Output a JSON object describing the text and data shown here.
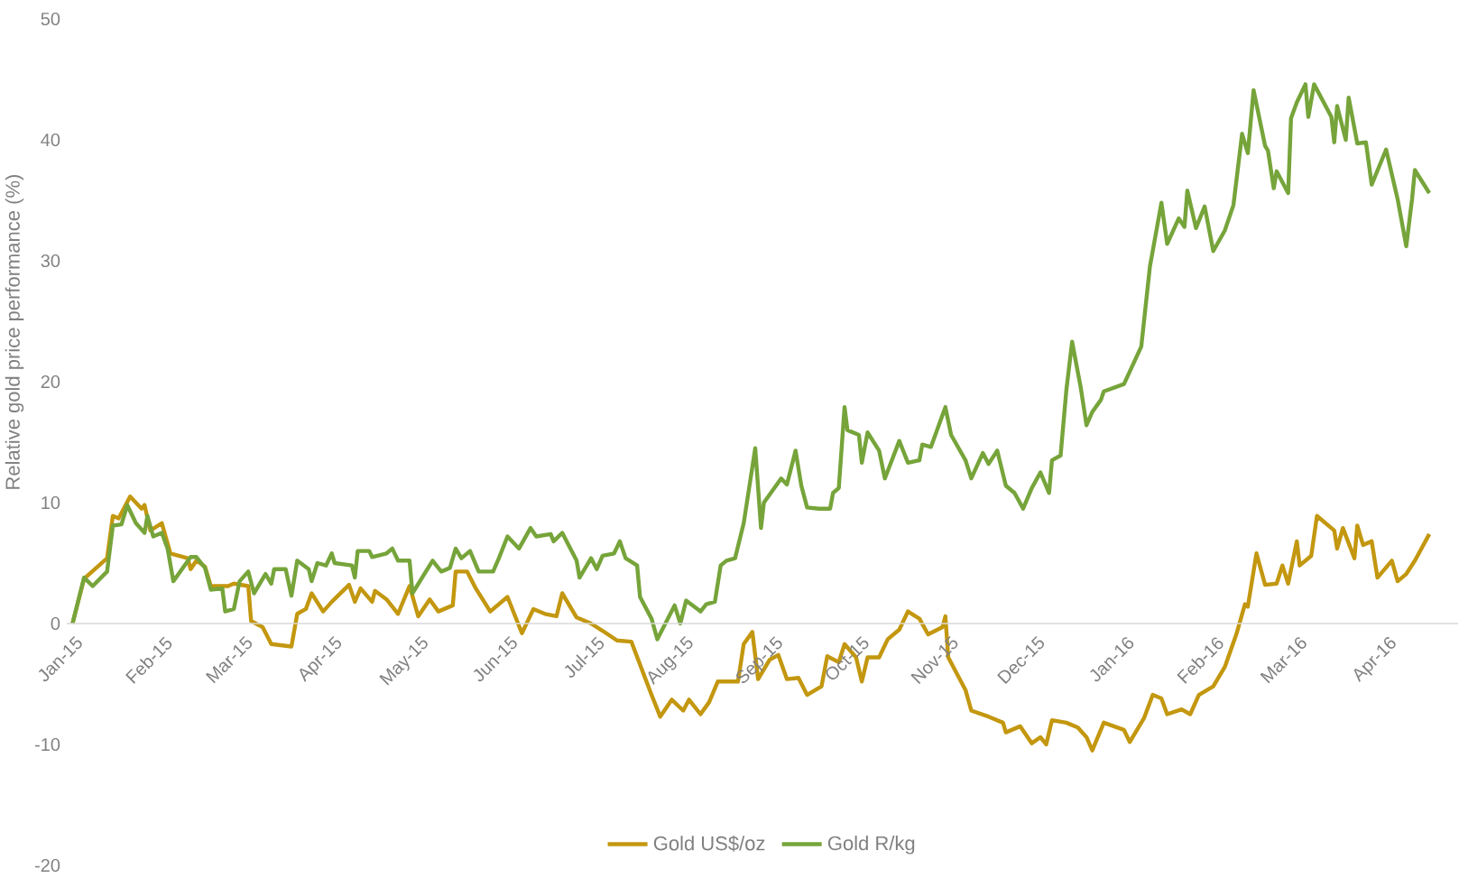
{
  "chart_data": {
    "type": "line",
    "ylabel": "Relative gold price performance (%)",
    "xlim": [
      "2014-12-30",
      "2016-04-26"
    ],
    "ylim": [
      -20,
      50
    ],
    "yticks": [
      -20,
      -10,
      0,
      10,
      20,
      30,
      40,
      50
    ],
    "xticks": [
      {
        "value": "2015-01-01",
        "label": "Jan-15"
      },
      {
        "value": "2015-02-01",
        "label": "Feb-15"
      },
      {
        "value": "2015-03-01",
        "label": "Mar-15"
      },
      {
        "value": "2015-04-01",
        "label": "Apr-15"
      },
      {
        "value": "2015-05-01",
        "label": "May-15"
      },
      {
        "value": "2015-06-01",
        "label": "Jun-15"
      },
      {
        "value": "2015-07-01",
        "label": "Jul-15"
      },
      {
        "value": "2015-08-01",
        "label": "Aug-15"
      },
      {
        "value": "2015-09-01",
        "label": "Sep-15"
      },
      {
        "value": "2015-10-01",
        "label": "Oct-15"
      },
      {
        "value": "2015-11-01",
        "label": "Nov-15"
      },
      {
        "value": "2015-12-01",
        "label": "Dec-15"
      },
      {
        "value": "2016-01-01",
        "label": "Jan-16"
      },
      {
        "value": "2016-02-01",
        "label": "Feb-16"
      },
      {
        "value": "2016-03-01",
        "label": "Mar-16"
      },
      {
        "value": "2016-04-01",
        "label": "Apr-16"
      }
    ],
    "legend": "bottom",
    "series": [
      {
        "name": "Gold US$/oz",
        "color": "#c3970f",
        "x": [
          "2015-01-01",
          "2015-01-05",
          "2015-01-13",
          "2015-01-15",
          "2015-01-17",
          "2015-01-21",
          "2015-01-25",
          "2015-01-26",
          "2015-01-28",
          "2015-02-01",
          "2015-02-04",
          "2015-02-10",
          "2015-02-11",
          "2015-02-13",
          "2015-02-16",
          "2015-02-18",
          "2015-02-24",
          "2015-02-26",
          "2015-03-03",
          "2015-03-04",
          "2015-03-08",
          "2015-03-11",
          "2015-03-18",
          "2015-03-20",
          "2015-03-23",
          "2015-03-25",
          "2015-03-29",
          "2015-04-01",
          "2015-04-07",
          "2015-04-09",
          "2015-04-11",
          "2015-04-15",
          "2015-04-16",
          "2015-04-20",
          "2015-04-24",
          "2015-04-28",
          "2015-05-01",
          "2015-05-05",
          "2015-05-08",
          "2015-05-13",
          "2015-05-14",
          "2015-05-18",
          "2015-05-21",
          "2015-05-26",
          "2015-06-01",
          "2015-06-06",
          "2015-06-10",
          "2015-06-14",
          "2015-06-18",
          "2015-06-20",
          "2015-06-25",
          "2015-06-30",
          "2015-07-04",
          "2015-07-09",
          "2015-07-14",
          "2015-07-17",
          "2015-07-21",
          "2015-07-24",
          "2015-07-28",
          "2015-08-01",
          "2015-08-03",
          "2015-08-07",
          "2015-08-10",
          "2015-08-13",
          "2015-08-20",
          "2015-08-22",
          "2015-08-25",
          "2015-08-27",
          "2015-08-31",
          "2015-09-03",
          "2015-09-06",
          "2015-09-10",
          "2015-09-13",
          "2015-09-18",
          "2015-09-20",
          "2015-09-24",
          "2015-09-26",
          "2015-09-30",
          "2015-10-02",
          "2015-10-04",
          "2015-10-08",
          "2015-10-11",
          "2015-10-15",
          "2015-10-18",
          "2015-10-22",
          "2015-10-25",
          "2015-10-30",
          "2015-10-31",
          "2015-11-01",
          "2015-11-07",
          "2015-11-09",
          "2015-11-15",
          "2015-11-20",
          "2015-11-21",
          "2015-11-26",
          "2015-11-30",
          "2015-12-03",
          "2015-12-05",
          "2015-12-07",
          "2015-12-12",
          "2015-12-16",
          "2015-12-19",
          "2015-12-21",
          "2015-12-25",
          "2016-01-01",
          "2016-01-03",
          "2016-01-08",
          "2016-01-11",
          "2016-01-14",
          "2016-01-16",
          "2016-01-21",
          "2016-01-24",
          "2016-01-27",
          "2016-02-01",
          "2016-02-05",
          "2016-02-09",
          "2016-02-12",
          "2016-02-13",
          "2016-02-16",
          "2016-02-19",
          "2016-02-23",
          "2016-02-25",
          "2016-02-27",
          "2016-03-01",
          "2016-03-02",
          "2016-03-06",
          "2016-03-08",
          "2016-03-14",
          "2016-03-15",
          "2016-03-17",
          "2016-03-21",
          "2016-03-22",
          "2016-03-24",
          "2016-03-27",
          "2016-03-29",
          "2016-04-03",
          "2016-04-05",
          "2016-04-08",
          "2016-04-11",
          "2016-04-16"
        ],
        "values": [
          0,
          3.7,
          5.4,
          8.9,
          8.7,
          10.5,
          9.5,
          9.8,
          7.7,
          8.3,
          5.8,
          5.4,
          4.5,
          5.2,
          4.7,
          3.1,
          3.1,
          3.3,
          3.1,
          0.2,
          -0.3,
          -1.7,
          -1.9,
          0.8,
          1.2,
          2.5,
          1.0,
          1.8,
          3.2,
          1.8,
          2.9,
          1.8,
          2.7,
          2.0,
          0.8,
          3.1,
          0.6,
          2.0,
          1.0,
          1.5,
          4.3,
          4.3,
          2.9,
          1.0,
          2.2,
          -0.8,
          1.2,
          0.8,
          0.6,
          2.5,
          0.5,
          0,
          -0.6,
          -1.4,
          -1.5,
          -3.4,
          -5.9,
          -7.7,
          -6.3,
          -7.2,
          -6.3,
          -7.5,
          -6.5,
          -4.8,
          -4.8,
          -1.7,
          -0.7,
          -4.6,
          -3.0,
          -2.6,
          -4.6,
          -4.5,
          -5.9,
          -5.2,
          -2.7,
          -3.2,
          -1.7,
          -2.8,
          -4.8,
          -2.8,
          -2.8,
          -1.3,
          -0.5,
          1.0,
          0.4,
          -0.9,
          -0.3,
          0.6,
          -2.8,
          -5.5,
          -7.2,
          -7.7,
          -8.2,
          -9.0,
          -8.5,
          -9.9,
          -9.4,
          -10.0,
          -8.0,
          -8.2,
          -8.6,
          -9.4,
          -10.5,
          -8.2,
          -8.8,
          -9.8,
          -7.8,
          -5.9,
          -6.2,
          -7.5,
          -7.1,
          -7.5,
          -5.9,
          -5.2,
          -3.6,
          -0.9,
          1.6,
          1.4,
          5.8,
          3.2,
          3.3,
          4.8,
          3.3,
          6.8,
          4.8,
          5.6,
          8.9,
          7.7,
          6.2,
          7.9,
          5.4,
          8.1,
          6.5,
          6.8,
          3.8,
          5.2,
          3.5,
          4.1,
          5.2,
          7.4
        ]
      },
      {
        "name": "Gold R/kg",
        "color": "#76a43a",
        "x": [
          "2015-01-01",
          "2015-01-05",
          "2015-01-08",
          "2015-01-13",
          "2015-01-15",
          "2015-01-18",
          "2015-01-20",
          "2015-01-23",
          "2015-01-26",
          "2015-01-27",
          "2015-01-29",
          "2015-02-01",
          "2015-02-03",
          "2015-02-05",
          "2015-02-11",
          "2015-02-13",
          "2015-02-16",
          "2015-02-18",
          "2015-02-22",
          "2015-02-23",
          "2015-02-26",
          "2015-02-28",
          "2015-03-03",
          "2015-03-05",
          "2015-03-09",
          "2015-03-11",
          "2015-03-12",
          "2015-03-16",
          "2015-03-18",
          "2015-03-20",
          "2015-03-24",
          "2015-03-25",
          "2015-03-27",
          "2015-03-30",
          "2015-04-01",
          "2015-04-02",
          "2015-04-08",
          "2015-04-09",
          "2015-04-10",
          "2015-04-14",
          "2015-04-15",
          "2015-04-20",
          "2015-04-22",
          "2015-04-24",
          "2015-04-28",
          "2015-04-29",
          "2015-05-06",
          "2015-05-09",
          "2015-05-12",
          "2015-05-14",
          "2015-05-16",
          "2015-05-19",
          "2015-05-22",
          "2015-05-27",
          "2015-05-29",
          "2015-06-01",
          "2015-06-05",
          "2015-06-09",
          "2015-06-11",
          "2015-06-16",
          "2015-06-17",
          "2015-06-20",
          "2015-06-25",
          "2015-06-26",
          "2015-06-30",
          "2015-07-02",
          "2015-07-04",
          "2015-07-08",
          "2015-07-10",
          "2015-07-12",
          "2015-07-16",
          "2015-07-17",
          "2015-07-21",
          "2015-07-23",
          "2015-07-29",
          "2015-07-31",
          "2015-08-02",
          "2015-08-07",
          "2015-08-09",
          "2015-08-12",
          "2015-08-14",
          "2015-08-16",
          "2015-08-19",
          "2015-08-22",
          "2015-08-26",
          "2015-08-28",
          "2015-08-29",
          "2015-09-04",
          "2015-09-06",
          "2015-09-09",
          "2015-09-11",
          "2015-09-13",
          "2015-09-17",
          "2015-09-21",
          "2015-09-22",
          "2015-09-24",
          "2015-09-26",
          "2015-09-27",
          "2015-10-01",
          "2015-10-02",
          "2015-10-04",
          "2015-10-08",
          "2015-10-10",
          "2015-10-15",
          "2015-10-18",
          "2015-10-22",
          "2015-10-23",
          "2015-10-26",
          "2015-10-31",
          "2015-11-02",
          "2015-11-07",
          "2015-11-09",
          "2015-11-13",
          "2015-11-15",
          "2015-11-18",
          "2015-11-21",
          "2015-11-24",
          "2015-11-27",
          "2015-11-30",
          "2015-12-03",
          "2015-12-06",
          "2015-12-07",
          "2015-12-10",
          "2015-12-12",
          "2015-12-14",
          "2015-12-17",
          "2015-12-19",
          "2015-12-21",
          "2015-12-24",
          "2015-12-25",
          "2016-01-01",
          "2016-01-07",
          "2016-01-10",
          "2016-01-14",
          "2016-01-16",
          "2016-01-20",
          "2016-01-22",
          "2016-01-23",
          "2016-01-26",
          "2016-01-29",
          "2016-02-01",
          "2016-02-05",
          "2016-02-08",
          "2016-02-11",
          "2016-02-13",
          "2016-02-15",
          "2016-02-19",
          "2016-02-20",
          "2016-02-22",
          "2016-02-23",
          "2016-02-27",
          "2016-02-28",
          "2016-03-01",
          "2016-03-04",
          "2016-03-05",
          "2016-03-07",
          "2016-03-13",
          "2016-03-14",
          "2016-03-15",
          "2016-03-18",
          "2016-03-19",
          "2016-03-22",
          "2016-03-25",
          "2016-03-27",
          "2016-04-01",
          "2016-04-05",
          "2016-04-08",
          "2016-04-10",
          "2016-04-11",
          "2016-04-16"
        ],
        "values": [
          0,
          3.8,
          3.1,
          4.3,
          8.1,
          8.2,
          9.8,
          8.3,
          7.5,
          8.9,
          7.2,
          7.5,
          6.2,
          3.5,
          5.5,
          5.5,
          4.6,
          2.8,
          2.9,
          1.0,
          1.2,
          3.5,
          4.3,
          2.5,
          4.1,
          3.3,
          4.5,
          4.5,
          2.3,
          5.2,
          4.5,
          3.5,
          5.0,
          4.8,
          5.8,
          5.0,
          4.8,
          3.8,
          6.0,
          6.0,
          5.5,
          5.8,
          6.2,
          5.2,
          5.2,
          2.5,
          5.2,
          4.3,
          4.6,
          6.2,
          5.4,
          6.0,
          4.3,
          4.3,
          5.4,
          7.2,
          6.2,
          7.9,
          7.2,
          7.4,
          6.8,
          7.5,
          5.2,
          3.8,
          5.4,
          4.5,
          5.6,
          5.8,
          6.8,
          5.4,
          4.8,
          2.2,
          0.4,
          -1.3,
          1.5,
          0,
          1.9,
          1.0,
          1.6,
          1.8,
          4.8,
          5.2,
          5.4,
          8.3,
          14.5,
          7.9,
          10.0,
          12.0,
          11.5,
          14.3,
          11.4,
          9.6,
          9.5,
          9.5,
          10.8,
          11.2,
          17.9,
          16.0,
          15.6,
          13.3,
          15.8,
          14.3,
          12.0,
          15.1,
          13.3,
          13.5,
          14.8,
          14.6,
          17.9,
          15.6,
          13.5,
          12.0,
          14.1,
          13.2,
          14.3,
          11.4,
          10.8,
          9.5,
          11.2,
          12.5,
          10.8,
          13.5,
          13.9,
          19.3,
          23.3,
          19.5,
          16.4,
          17.5,
          18.5,
          19.2,
          19.8,
          22.9,
          29.5,
          34.8,
          31.4,
          33.5,
          32.8,
          35.8,
          32.7,
          34.5,
          30.8,
          32.5,
          34.6,
          40.5,
          38.9,
          44.1,
          39.5,
          39.1,
          36.0,
          37.4,
          35.6,
          41.8,
          43.1,
          44.6,
          41.9,
          44.6,
          41.9,
          39.8,
          42.8,
          40.0,
          43.5,
          39.7,
          39.8,
          36.3,
          39.2,
          35.1,
          31.2,
          35.1,
          37.5,
          35.6
        ]
      }
    ]
  }
}
